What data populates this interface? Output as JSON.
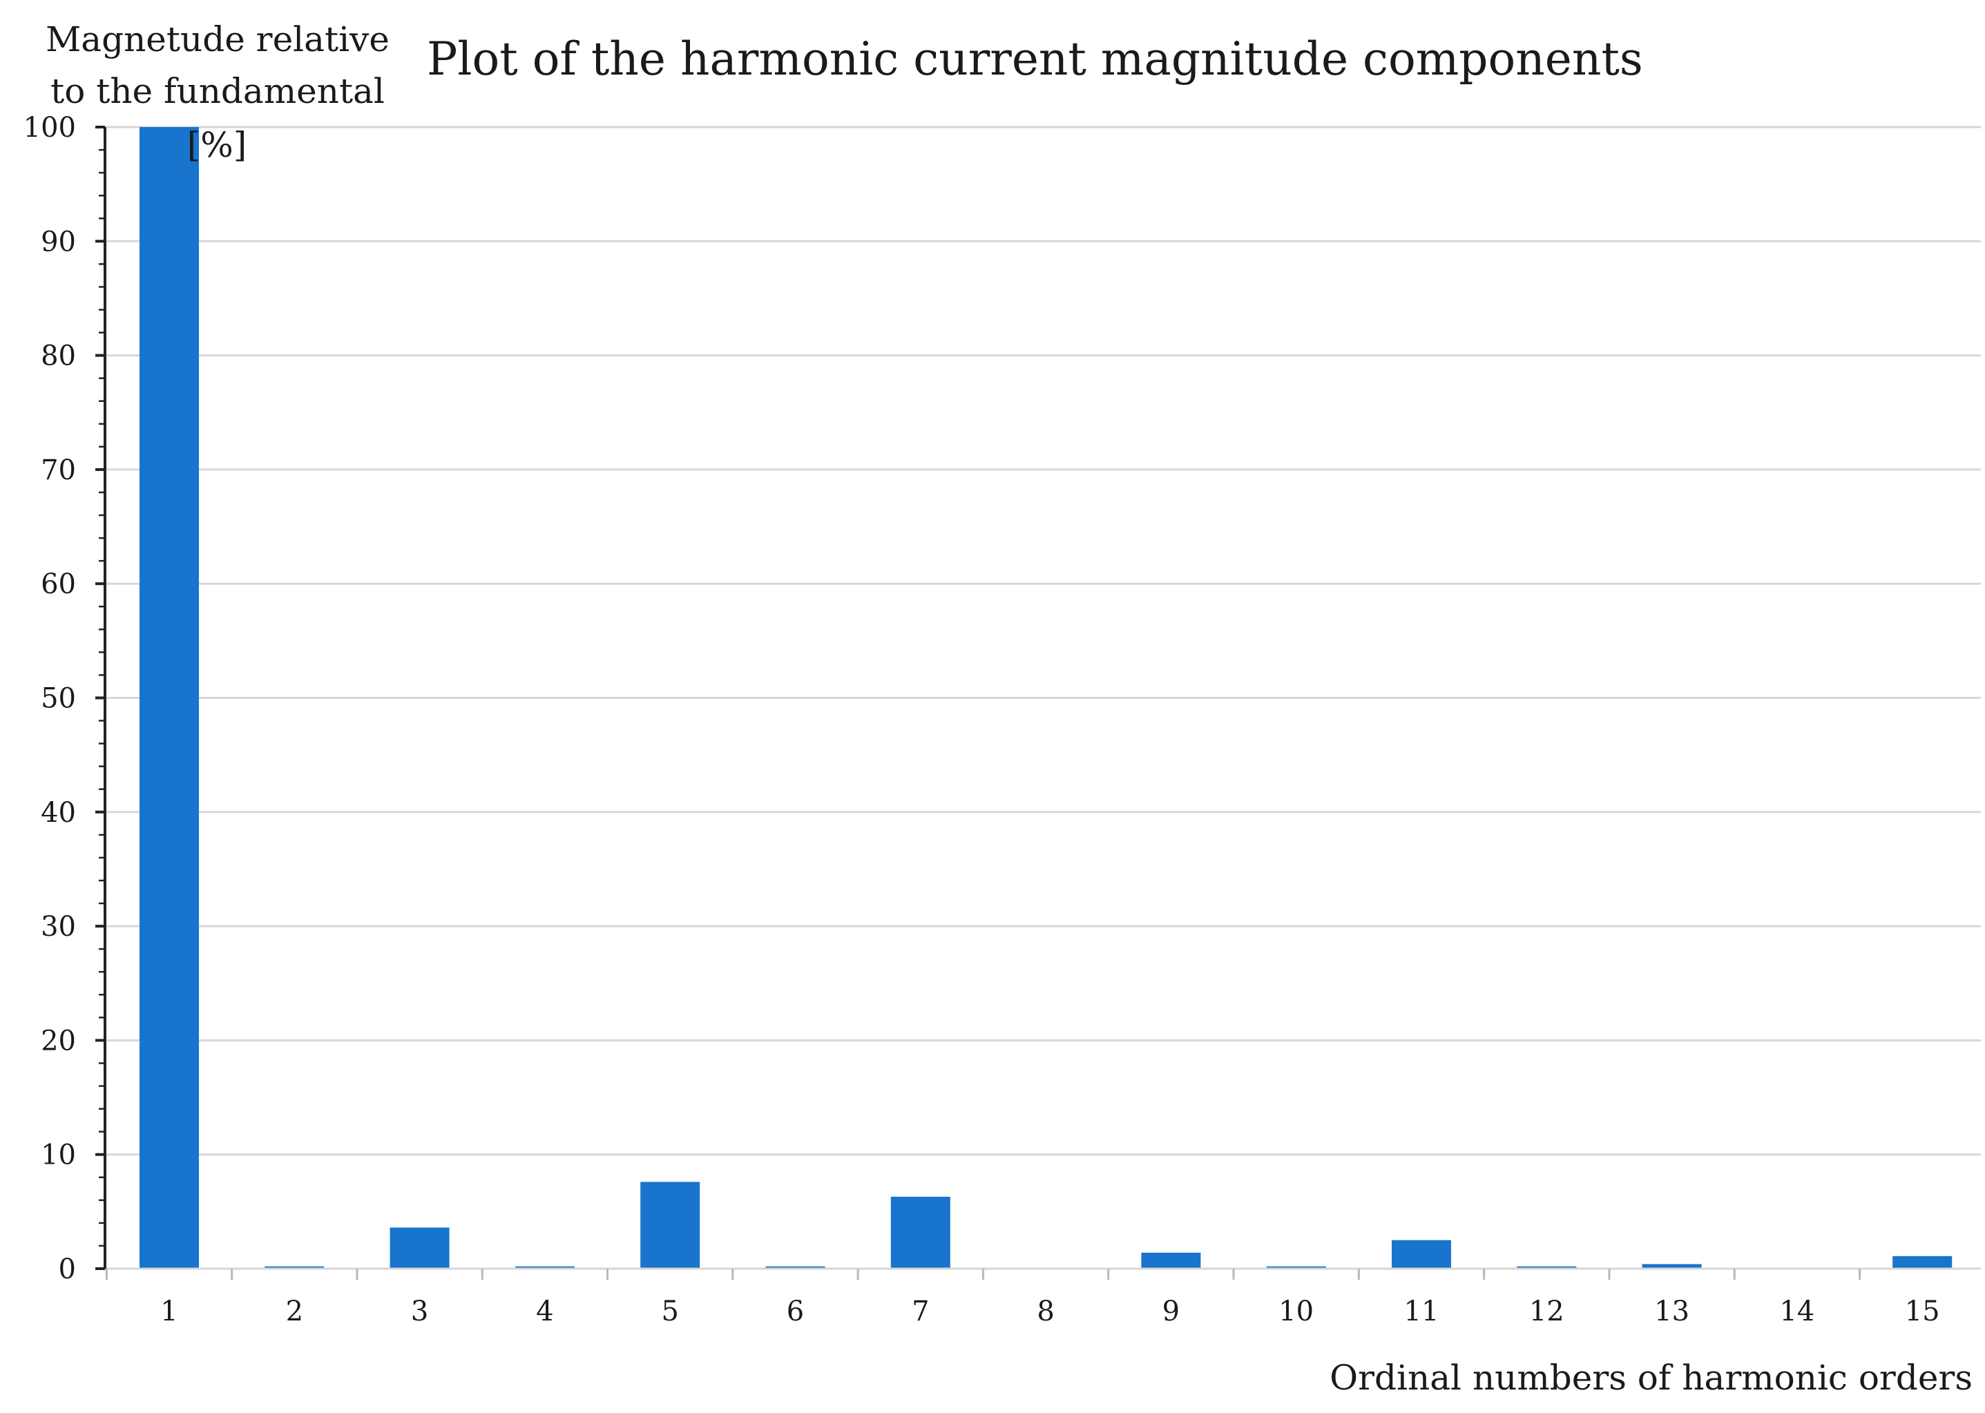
{
  "chart_data": {
    "type": "bar",
    "title": "Plot of the harmonic current magnitude components",
    "ylabel_lines": [
      "Magnetude relative",
      "to the fundamental",
      "[%]"
    ],
    "xlabel": "Ordinal numbers of harmonic orders",
    "categories": [
      "1",
      "2",
      "3",
      "4",
      "5",
      "6",
      "7",
      "8",
      "9",
      "10",
      "11",
      "12",
      "13",
      "14",
      "15"
    ],
    "values": [
      100,
      0.2,
      3.6,
      0.2,
      7.6,
      0.2,
      6.3,
      0,
      1.4,
      0.2,
      2.5,
      0.2,
      0.4,
      0,
      1.1
    ],
    "ylim": [
      0,
      100
    ],
    "yticks": [
      0,
      10,
      20,
      30,
      40,
      50,
      60,
      70,
      80,
      90,
      100
    ],
    "ytick_labels": [
      "0",
      "10",
      "20",
      "30",
      "40",
      "50",
      "60",
      "70",
      "80",
      "90",
      "100"
    ],
    "grid": true,
    "legend": "none",
    "bar_color": "#1874cd"
  }
}
